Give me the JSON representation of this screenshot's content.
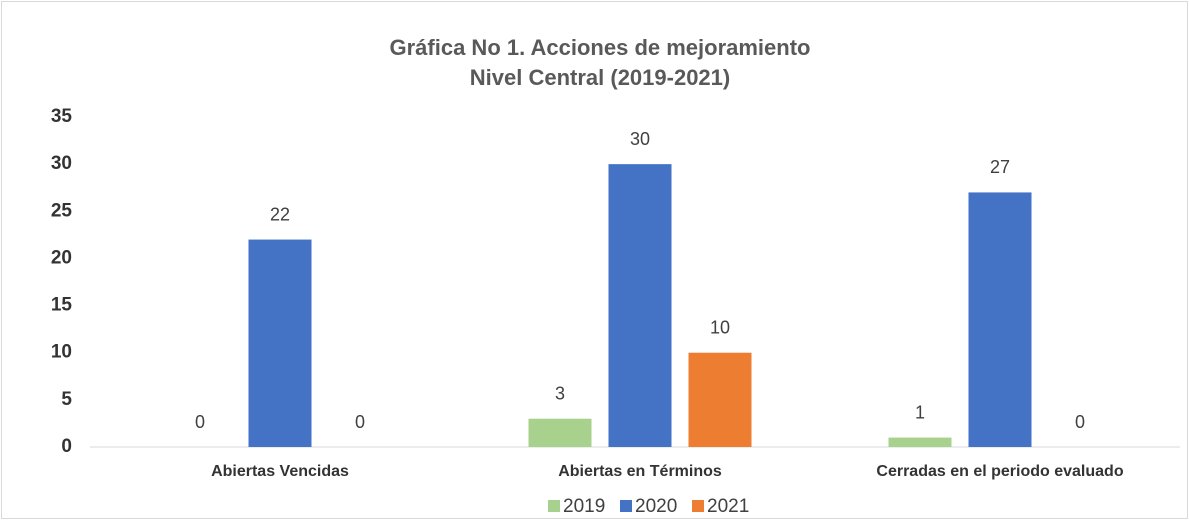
{
  "chart_data": {
    "type": "bar",
    "title": "Gráfica No 1. Acciones de mejoramiento",
    "subtitle": "Nivel Central (2019-2021)",
    "categories": [
      "Abiertas Vencidas",
      "Abiertas en Términos",
      "Cerradas en el periodo evaluado"
    ],
    "series": [
      {
        "name": "2019",
        "color": "#a9d18e",
        "values": [
          0,
          3,
          1
        ]
      },
      {
        "name": "2020",
        "color": "#4472c4",
        "values": [
          22,
          30,
          27
        ]
      },
      {
        "name": "2021",
        "color": "#ed7d31",
        "values": [
          0,
          10,
          0
        ]
      }
    ],
    "ylim": [
      0,
      35
    ],
    "yticks": [
      0,
      5,
      10,
      15,
      20,
      25,
      30,
      35
    ],
    "grid": false,
    "legend": "bottom"
  }
}
